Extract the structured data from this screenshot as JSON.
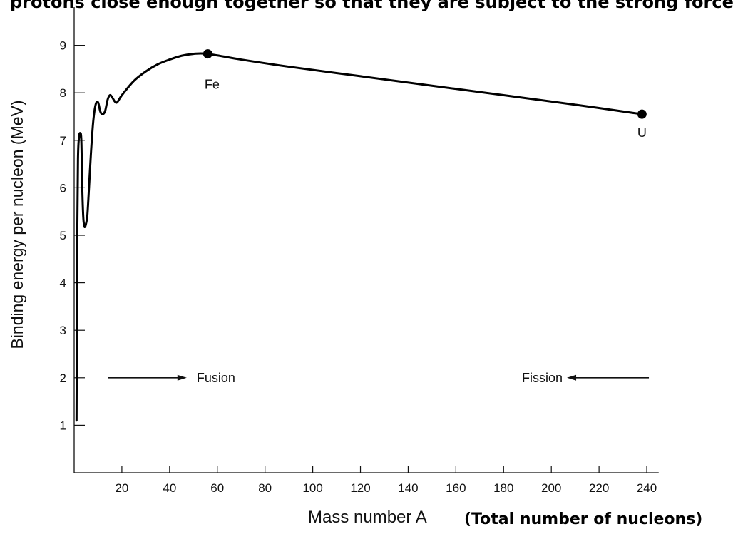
{
  "page": {
    "top_caption": "protons close enough together so that they are subject to the strong force"
  },
  "chart_data": {
    "type": "line",
    "title": "",
    "xlabel": "Mass number A",
    "xlabel_note": "(Total number of nucleons)",
    "ylabel": "Binding energy per nucleon (MeV)",
    "xlim": [
      0,
      245
    ],
    "ylim": [
      0,
      9.6
    ],
    "x_ticks": [
      20,
      40,
      60,
      80,
      100,
      120,
      140,
      160,
      180,
      200,
      220,
      240
    ],
    "y_ticks": [
      1,
      2,
      3,
      4,
      5,
      6,
      7,
      8,
      9
    ],
    "grid": false,
    "series": [
      {
        "x": [
          1,
          1.3,
          1.6,
          2,
          2.5,
          3,
          3.4,
          3.8,
          4.2,
          4.6,
          5,
          5.5,
          6,
          7,
          8,
          9,
          10,
          11,
          12,
          13,
          14,
          15,
          16,
          17,
          18,
          20,
          25,
          30,
          35,
          40,
          45,
          50,
          56,
          70,
          90,
          120,
          150,
          180,
          210,
          238
        ],
        "y": [
          1.1,
          5.0,
          6.6,
          7.05,
          7.15,
          7.0,
          6.0,
          5.4,
          5.2,
          5.18,
          5.25,
          5.4,
          5.8,
          6.7,
          7.4,
          7.75,
          7.8,
          7.6,
          7.55,
          7.62,
          7.85,
          7.95,
          7.9,
          7.82,
          7.8,
          7.95,
          8.25,
          8.45,
          8.6,
          8.7,
          8.78,
          8.82,
          8.82,
          8.7,
          8.55,
          8.35,
          8.15,
          7.95,
          7.75,
          7.55
        ]
      }
    ],
    "points": [
      {
        "label": "Fe",
        "x": 56,
        "y": 8.82
      },
      {
        "label": "U",
        "x": 238,
        "y": 7.55
      }
    ],
    "annotations": [
      {
        "text": "Fusion",
        "x": 14,
        "y": 2,
        "arrow": "right"
      },
      {
        "text": "Fission",
        "x": 240,
        "y": 2,
        "arrow": "left"
      }
    ]
  }
}
